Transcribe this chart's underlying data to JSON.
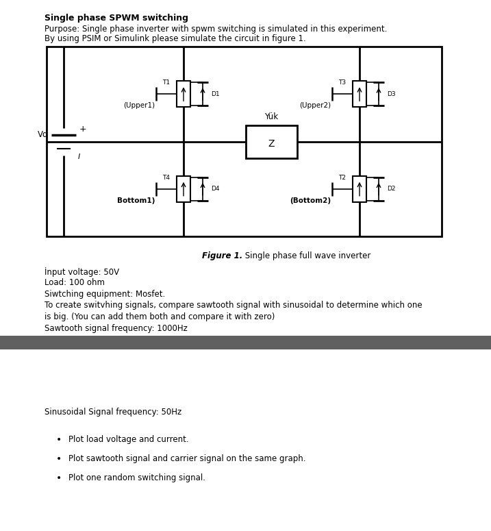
{
  "title": "Single phase SPWM switching",
  "purpose_line1": "Purpose: Single phase inverter with spwm switching is simulated in this experiment.",
  "purpose_line2": "By using PSIM or Simulink please simulate the circuit in figure 1.",
  "figure_bold": "Figure 1.",
  "figure_rest": " Single phase full wave inverter",
  "specs": [
    "İnput voltage: 50V",
    "Load: 100 ohm",
    "Siwtching equipment: Mosfet.",
    "To create switvhing signals, compare sawtooth signal with sinusoidal to determine which one",
    "is big. (You can add them both and compare it with zero)",
    "Sawtooth signal frequency: 1000Hz"
  ],
  "sinusoidal_freq": "Sinusoidal Signal frequency: 50Hz",
  "bullets": [
    "Plot load voltage and current.",
    "Plot sawtooth signal and carrier signal on the same graph.",
    "Plot one random switching signal."
  ],
  "bg_color": "#ffffff",
  "separator_color": "#606060",
  "text_color": "#000000",
  "title_fontsize": 9,
  "body_fontsize": 8.5,
  "small_fontsize": 7
}
